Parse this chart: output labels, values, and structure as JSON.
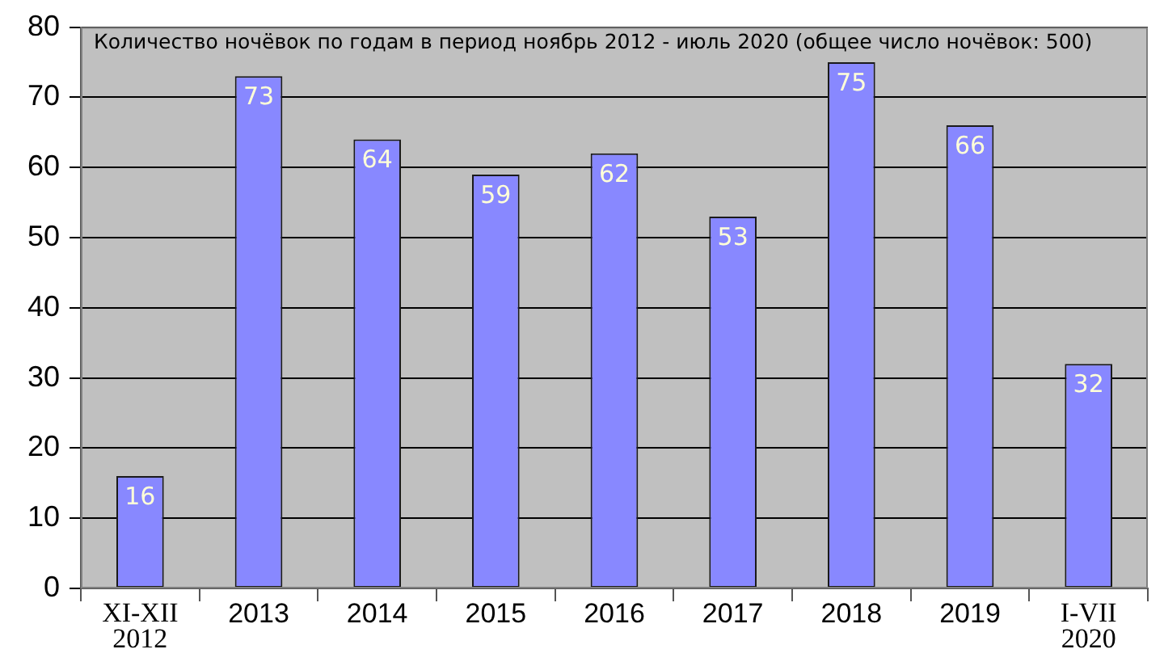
{
  "chart_data": {
    "type": "bar",
    "title": "Количество ночёвок по годам в период ноябрь 2012 - июль 2020 (общее число ночёвок: 500)",
    "categories": [
      "XI-XII\n2012",
      "2013",
      "2014",
      "2015",
      "2016",
      "2017",
      "2018",
      "2019",
      "I-VII\n2020"
    ],
    "values": [
      16,
      73,
      64,
      59,
      62,
      53,
      75,
      66,
      32
    ],
    "color": "#8888ff",
    "ylim": [
      0,
      80
    ],
    "yticks": [
      0,
      10,
      20,
      30,
      40,
      50,
      60,
      70,
      80
    ],
    "grid": "y",
    "data_labels": true
  }
}
